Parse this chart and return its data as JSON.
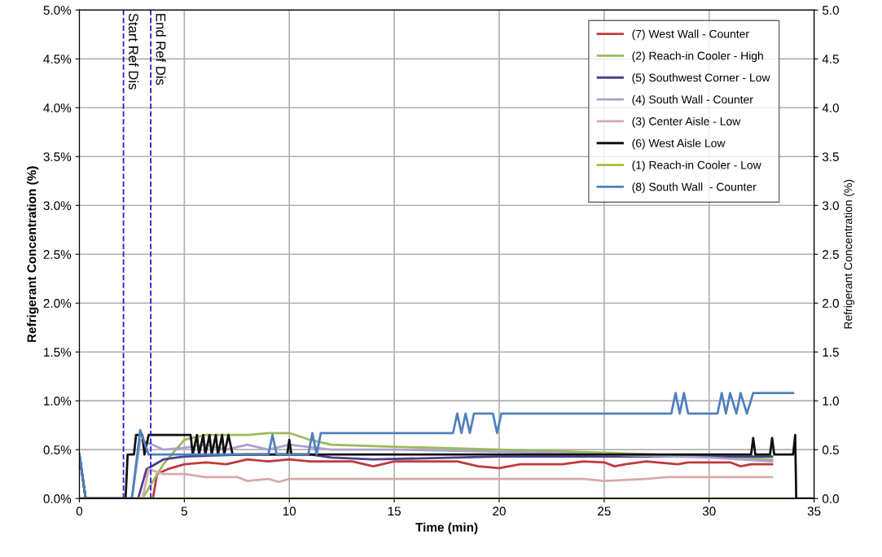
{
  "chart_data": {
    "type": "line",
    "xlabel": "Time (min)",
    "ylabel": "Refrigerant Concentration (%)",
    "y2label": "Refrigerant Concentration (%)",
    "xlim": [
      0,
      35
    ],
    "xticks": [
      0,
      5,
      10,
      15,
      20,
      25,
      30,
      35
    ],
    "ylim": [
      0,
      5
    ],
    "yticks": [
      {
        "value": 0,
        "label": "0.0%"
      },
      {
        "value": 0.5,
        "label": "0.5%"
      },
      {
        "value": 1,
        "label": "1.0%"
      },
      {
        "value": 1.5,
        "label": "1.5%"
      },
      {
        "value": 2,
        "label": "2.0%"
      },
      {
        "value": 2.5,
        "label": "2.5%"
      },
      {
        "value": 3,
        "label": "3.0%"
      },
      {
        "value": 3.5,
        "label": "3.5%"
      },
      {
        "value": 4,
        "label": "4.0%"
      },
      {
        "value": 4.5,
        "label": "4.5%"
      },
      {
        "value": 5,
        "label": "5.0%"
      }
    ],
    "y2lim": [
      0,
      5
    ],
    "y2ticks": [
      {
        "value": 0,
        "label": "0.0"
      },
      {
        "value": 0.5,
        "label": "0.5"
      },
      {
        "value": 1,
        "label": "1.0"
      },
      {
        "value": 1.5,
        "label": "1.5"
      },
      {
        "value": 2,
        "label": "2.0"
      },
      {
        "value": 2.5,
        "label": "2.5"
      },
      {
        "value": 3,
        "label": "3.0"
      },
      {
        "value": 3.5,
        "label": "3.5"
      },
      {
        "value": 4,
        "label": "4.0"
      },
      {
        "value": 4.5,
        "label": "4.5"
      },
      {
        "value": 5,
        "label": "5.0"
      }
    ],
    "grid": true,
    "legend": "top right",
    "marker": "none",
    "line_style": "solid",
    "ref_lines": [
      {
        "axis": "x",
        "value": 2.1,
        "label": "Start Ref Dis",
        "color": "#2020d0",
        "line_style": "dashed"
      },
      {
        "axis": "x",
        "value": 3.4,
        "label": "End Ref Dis",
        "color": "#2020d0",
        "line_style": "dashed"
      }
    ],
    "series": [
      {
        "name": "(7) West Wall - Counter",
        "color": "#c0393b",
        "x": [
          0,
          3.5,
          3.7,
          4.2,
          5,
          6,
          7,
          8,
          9,
          10,
          11,
          13,
          14,
          15,
          16,
          18,
          19,
          20,
          21,
          23,
          24,
          25,
          25.5,
          26,
          27,
          28.5,
          29,
          31,
          31.5,
          32,
          33
        ],
        "values": [
          0,
          0,
          0.25,
          0.3,
          0.35,
          0.37,
          0.35,
          0.4,
          0.38,
          0.4,
          0.38,
          0.38,
          0.33,
          0.38,
          0.38,
          0.38,
          0.33,
          0.31,
          0.35,
          0.35,
          0.38,
          0.37,
          0.33,
          0.35,
          0.38,
          0.35,
          0.37,
          0.37,
          0.33,
          0.35,
          0.35
        ]
      },
      {
        "name": "(2) Reach-in Cooler - High",
        "color": "#9bbb59",
        "x": [
          0,
          3,
          4,
          5,
          6,
          8,
          9,
          10,
          11,
          12,
          15,
          20,
          25,
          30,
          33
        ],
        "values": [
          0,
          0,
          0.35,
          0.6,
          0.65,
          0.65,
          0.67,
          0.67,
          0.6,
          0.55,
          0.53,
          0.5,
          0.47,
          0.43,
          0.4
        ]
      },
      {
        "name": "(5) Southwest Corner - Low",
        "color": "#4b3f8f",
        "x": [
          0,
          0.3,
          2.8,
          3.2,
          4,
          5,
          8,
          11,
          12,
          14,
          20,
          33
        ],
        "values": [
          0.45,
          0,
          0,
          0.3,
          0.4,
          0.43,
          0.45,
          0.45,
          0.42,
          0.4,
          0.43,
          0.43
        ]
      },
      {
        "name": "(4) South Wall - Counter",
        "color": "#a9a3d0",
        "x": [
          0,
          2.5,
          2.9,
          3.5,
          4,
          5,
          6,
          7,
          8,
          9,
          10,
          12,
          15,
          20,
          25,
          30,
          33
        ],
        "values": [
          0,
          0,
          0.6,
          0.55,
          0.5,
          0.52,
          0.55,
          0.5,
          0.55,
          0.5,
          0.55,
          0.5,
          0.5,
          0.48,
          0.45,
          0.42,
          0.38
        ]
      },
      {
        "name": "(3) Center Aisle - Low",
        "color": "#d8a8a8",
        "x": [
          0,
          3,
          3.3,
          4,
          5,
          6,
          7.5,
          8,
          9,
          9.5,
          10,
          24,
          25,
          27,
          28,
          33
        ],
        "values": [
          0,
          0,
          0.3,
          0.25,
          0.25,
          0.22,
          0.22,
          0.18,
          0.2,
          0.17,
          0.2,
          0.2,
          0.18,
          0.2,
          0.22,
          0.22
        ]
      },
      {
        "name": "(6) West Aisle Low",
        "color": "#111111",
        "x": [
          0,
          0.3,
          2.2,
          2.3,
          2.6,
          2.7,
          3.0,
          3.1,
          3.3,
          5.3,
          5.4,
          5.6,
          5.7,
          5.9,
          6.0,
          6.2,
          6.3,
          6.5,
          6.6,
          6.8,
          6.9,
          7.1,
          7.3,
          9.9,
          10.0,
          10.1,
          32.0,
          32.1,
          32.2,
          32.9,
          33.0,
          33.1,
          34.0,
          34.1,
          34.15,
          35
        ],
        "values": [
          0.45,
          0,
          0,
          0.45,
          0.45,
          0.65,
          0.65,
          0.45,
          0.65,
          0.65,
          0.45,
          0.65,
          0.45,
          0.65,
          0.45,
          0.65,
          0.45,
          0.65,
          0.45,
          0.65,
          0.45,
          0.65,
          0.45,
          0.45,
          0.6,
          0.45,
          0.45,
          0.62,
          0.45,
          0.45,
          0.62,
          0.45,
          0.45,
          0.65,
          0,
          0
        ]
      },
      {
        "name": "(1) Reach-in Cooler - Low",
        "color": "#a4c02e",
        "x": [
          0,
          34
        ],
        "values": [
          0,
          0
        ]
      },
      {
        "name": "(8) South Wall  - Counter",
        "color": "#4f81bd",
        "x": [
          0,
          0.3,
          2.5,
          2.9,
          3.3,
          9.0,
          9.2,
          9.4,
          10.9,
          11.1,
          11.3,
          11.5,
          11.8,
          17.8,
          18.0,
          18.2,
          18.4,
          18.6,
          18.8,
          19.7,
          19.9,
          20.1,
          28.2,
          28.4,
          28.6,
          28.8,
          29.0,
          30.4,
          30.6,
          30.8,
          31.0,
          31.3,
          31.5,
          31.8,
          32.1,
          34.0
        ],
        "values": [
          0.45,
          0,
          0,
          0.7,
          0.45,
          0.45,
          0.65,
          0.45,
          0.45,
          0.67,
          0.45,
          0.67,
          0.67,
          0.67,
          0.87,
          0.67,
          0.87,
          0.67,
          0.87,
          0.87,
          0.67,
          0.87,
          0.87,
          1.08,
          0.87,
          1.08,
          0.87,
          0.87,
          1.08,
          0.87,
          1.08,
          0.87,
          1.08,
          0.87,
          1.08,
          1.08
        ]
      }
    ]
  }
}
